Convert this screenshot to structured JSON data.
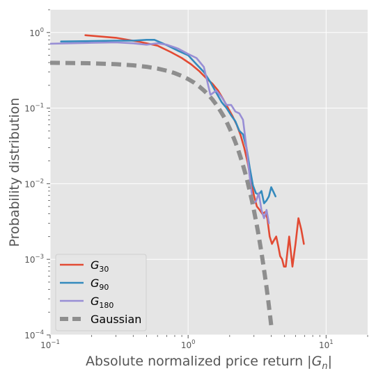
{
  "chart_data": {
    "type": "line",
    "x_scale": "log",
    "y_scale": "log",
    "xlim": [
      0.1,
      20
    ],
    "ylim": [
      0.0001,
      2
    ],
    "xlabel": "Absolute normalized price return |G_n|",
    "ylabel": "Probability distribution",
    "grid": true,
    "legend_position": "lower-left",
    "x_ticks": [
      {
        "value": 0.1,
        "base": "10",
        "exp": "−1"
      },
      {
        "value": 1,
        "base": "10",
        "exp": "0"
      },
      {
        "value": 10,
        "base": "10",
        "exp": "1"
      }
    ],
    "y_ticks": [
      {
        "value": 0.0001,
        "base": "10",
        "exp": "−4"
      },
      {
        "value": 0.001,
        "base": "10",
        "exp": "−3"
      },
      {
        "value": 0.01,
        "base": "10",
        "exp": "−2"
      },
      {
        "value": 0.1,
        "base": "10",
        "exp": "−1"
      },
      {
        "value": 1,
        "base": "10",
        "exp": "0"
      }
    ],
    "series": [
      {
        "name": "G_30",
        "label_base": "G",
        "label_sub": "30",
        "color": "#E24A33",
        "style": "solid",
        "x": [
          0.18,
          0.3,
          0.45,
          0.6,
          0.75,
          0.9,
          1.05,
          1.2,
          1.35,
          1.5,
          1.65,
          1.8,
          1.95,
          2.1,
          2.25,
          2.4,
          2.55,
          2.7,
          2.85,
          3.0,
          3.15,
          3.3,
          3.45,
          3.6,
          3.75,
          3.9,
          4.05,
          4.2,
          4.35,
          4.5,
          4.65,
          4.8,
          4.95,
          5.1,
          5.4,
          5.7,
          6.0,
          6.3,
          6.6,
          6.9
        ],
        "y": [
          0.92,
          0.85,
          0.75,
          0.67,
          0.55,
          0.46,
          0.38,
          0.31,
          0.25,
          0.21,
          0.17,
          0.13,
          0.1,
          0.078,
          0.06,
          0.044,
          0.03,
          0.019,
          0.011,
          0.007,
          0.005,
          0.0045,
          0.004,
          0.0042,
          0.0035,
          0.002,
          0.0016,
          0.0018,
          0.002,
          0.0015,
          0.0011,
          0.001,
          0.0008,
          0.0008,
          0.002,
          0.0008,
          0.0016,
          0.0035,
          0.0025,
          0.0016
        ]
      },
      {
        "name": "G_90",
        "label_base": "G",
        "label_sub": "90",
        "color": "#348ABD",
        "style": "solid",
        "x": [
          0.12,
          0.2,
          0.3,
          0.4,
          0.5,
          0.57,
          0.7,
          0.85,
          1.0,
          1.15,
          1.3,
          1.45,
          1.6,
          1.75,
          1.9,
          2.05,
          2.2,
          2.35,
          2.5,
          2.65,
          2.8,
          2.95,
          3.1,
          3.25,
          3.4,
          3.55,
          3.7,
          3.85,
          4.0,
          4.15,
          4.3
        ],
        "y": [
          0.76,
          0.77,
          0.78,
          0.78,
          0.8,
          0.8,
          0.68,
          0.57,
          0.5,
          0.38,
          0.3,
          0.22,
          0.16,
          0.12,
          0.1,
          0.08,
          0.067,
          0.05,
          0.045,
          0.03,
          0.016,
          0.0095,
          0.0075,
          0.0072,
          0.008,
          0.0055,
          0.006,
          0.0068,
          0.009,
          0.0078,
          0.0068
        ]
      },
      {
        "name": "G_180",
        "label_base": "G",
        "label_sub": "180",
        "color": "#988ED5",
        "style": "solid",
        "x": [
          0.1,
          0.2,
          0.3,
          0.4,
          0.5,
          0.6,
          0.7,
          0.85,
          1.0,
          1.15,
          1.3,
          1.45,
          1.6,
          1.75,
          1.9,
          2.05,
          2.2,
          2.35,
          2.5,
          2.65,
          2.8,
          2.95,
          3.1,
          3.25,
          3.4,
          3.55,
          3.7,
          3.85
        ],
        "y": [
          0.71,
          0.73,
          0.74,
          0.72,
          0.69,
          0.72,
          0.69,
          0.61,
          0.52,
          0.46,
          0.35,
          0.15,
          0.17,
          0.14,
          0.11,
          0.11,
          0.09,
          0.085,
          0.07,
          0.03,
          0.012,
          0.0055,
          0.0058,
          0.0075,
          0.0045,
          0.0035,
          0.0045,
          0.003
        ]
      },
      {
        "name": "Gaussian",
        "label_text": "Gaussian",
        "color": "#8E8E8E",
        "style": "dashed",
        "x": [
          0.1,
          0.15,
          0.2,
          0.3,
          0.4,
          0.5,
          0.6,
          0.7,
          0.8,
          0.9,
          1.0,
          1.1,
          1.2,
          1.3,
          1.4,
          1.5,
          1.6,
          1.7,
          1.8,
          1.9,
          2.0,
          2.1,
          2.2,
          2.3,
          2.4,
          2.5,
          2.6,
          2.7,
          2.8,
          2.9,
          3.0,
          3.1,
          3.2,
          3.3,
          3.4,
          3.5,
          3.6,
          3.7,
          3.8,
          3.9,
          4.0
        ],
        "y": [
          0.397,
          0.394,
          0.391,
          0.381,
          0.368,
          0.352,
          0.333,
          0.312,
          0.29,
          0.266,
          0.242,
          0.218,
          0.194,
          0.171,
          0.15,
          0.13,
          0.111,
          0.094,
          0.079,
          0.066,
          0.054,
          0.044,
          0.0355,
          0.0283,
          0.0224,
          0.0175,
          0.0136,
          0.0104,
          0.00792,
          0.00595,
          0.00443,
          0.00327,
          0.00238,
          0.00172,
          0.00123,
          0.00087,
          0.00061,
          0.000425,
          0.000292,
          0.000199,
          0.000134
        ]
      }
    ]
  },
  "axes": {
    "xlabel_text": "Absolute normalized price return |",
    "xlabel_var_base": "G",
    "xlabel_var_sub": "n",
    "xlabel_close": "|",
    "ylabel_text": "Probability distribution"
  }
}
